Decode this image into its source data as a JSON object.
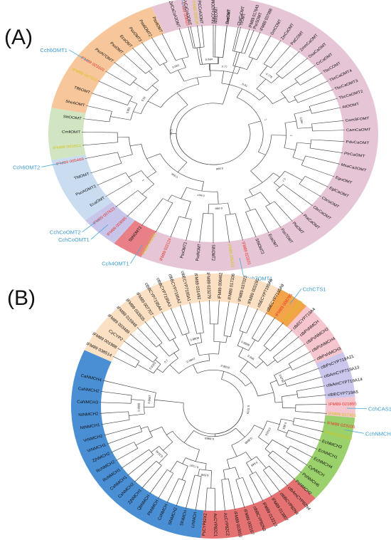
{
  "panels": [
    {
      "label": "(A)",
      "wedges": [
        {
          "color": "#b9b3ee",
          "a0": -110,
          "a1": -92
        },
        {
          "color": "#e6c6d6",
          "a0": -92,
          "a1": 116
        },
        {
          "color": "#e98087",
          "a0": 116,
          "a1": 127
        },
        {
          "color": "#c7c5ea",
          "a0": 127,
          "a1": 141
        },
        {
          "color": "#c9dcf0",
          "a0": 141,
          "a1": 169
        },
        {
          "color": "#d1e5c3",
          "a0": 169,
          "a1": 191
        },
        {
          "color": "#f7c79b",
          "a0": 191,
          "a1": 248
        },
        {
          "color": "#e6c6d6",
          "a0": 248,
          "a1": 270
        }
      ],
      "leaves": [
        {
          "a": -101,
          "t": "IFM89 008420",
          "c": "#e8312a"
        },
        {
          "a": -97,
          "t": "IFM89 009526",
          "c": "#d4c21a"
        },
        {
          "a": -89,
          "t": "MotEOMT",
          "c": "#111"
        },
        {
          "a": -84,
          "t": "GecOMT",
          "c": "#111"
        },
        {
          "a": -79,
          "t": "ChaCaOMT",
          "c": "#111"
        },
        {
          "a": -74,
          "t": "IFM89 017643",
          "c": "#111"
        },
        {
          "a": -69,
          "t": "IFM89 037098",
          "c": "#111"
        },
        {
          "a": -64,
          "t": "GmCOMT",
          "c": "#111"
        },
        {
          "a": -59,
          "t": "ZmCaOMT",
          "c": "#111"
        },
        {
          "a": -54,
          "t": "PstCOMT",
          "c": "#111"
        },
        {
          "a": -49,
          "t": "ZmmCaOMT",
          "c": "#111"
        },
        {
          "a": -44,
          "t": "OsaCaOMT",
          "c": "#111"
        },
        {
          "a": -39,
          "t": "CrCaOMT",
          "c": "#111"
        },
        {
          "a": -34,
          "t": "TbcCOMT",
          "c": "#111"
        },
        {
          "a": -29,
          "t": "TbcCaOMT4",
          "c": "#111"
        },
        {
          "a": -24,
          "t": "TbcCaOMT3",
          "c": "#111"
        },
        {
          "a": -19,
          "t": "TbcCaOMT2",
          "c": "#111"
        },
        {
          "a": -14,
          "t": "AtOOMT",
          "c": "#111"
        },
        {
          "a": -7,
          "t": "Cam3FOMT",
          "c": "#111"
        },
        {
          "a": -2,
          "t": "CamCaOMT",
          "c": "#111"
        },
        {
          "a": 4,
          "t": "PduCaOMT",
          "c": "#111"
        },
        {
          "a": 10,
          "t": "PtrCaOMT",
          "c": "#111"
        },
        {
          "a": 16,
          "t": "MsaCa3OMT",
          "c": "#111"
        },
        {
          "a": 23,
          "t": "EguOMT",
          "c": "#111"
        },
        {
          "a": 29,
          "t": "EglCaOMT",
          "c": "#111"
        },
        {
          "a": 35,
          "t": "CbrIsOMT",
          "c": "#111"
        },
        {
          "a": 41,
          "t": "CbrCaOMT",
          "c": "#111"
        },
        {
          "a": 47,
          "t": "PraCaOMT",
          "c": "#111"
        },
        {
          "a": 53,
          "t": "PtaOMT",
          "c": "#111"
        },
        {
          "a": 59,
          "t": "Pso7OMT",
          "c": "#111"
        },
        {
          "a": 65,
          "t": "EcaOMT",
          "c": "#111"
        },
        {
          "a": 71,
          "t": "SINOMT3",
          "c": "#111"
        },
        {
          "a": 77,
          "t": "IFM89 023101",
          "c": "#e8312a"
        },
        {
          "a": 83,
          "t": "IFM89 005453",
          "c": "#d4c21a"
        },
        {
          "a": 90,
          "t": "SINOMT2",
          "c": "#111"
        },
        {
          "a": 96,
          "t": "PsoNOMT",
          "c": "#111"
        },
        {
          "a": 102,
          "t": "PsoOMT2",
          "c": "#111"
        },
        {
          "a": 109,
          "t": "IFM89 022124",
          "c": "#e8312a"
        },
        {
          "a": 116,
          "t": "IFM89 001325",
          "c": "#d4c21a"
        },
        {
          "a": 123,
          "t": "SbNOMT2",
          "c": "#111"
        },
        {
          "a": 131,
          "t": "IFM89 003085",
          "c": "#e8312a"
        },
        {
          "a": 138,
          "t": "IFM89 007623",
          "c": "#e8312a"
        },
        {
          "a": 145,
          "t": "EcaOMT",
          "c": "#111"
        },
        {
          "a": 152,
          "t": "PsoAOMT2",
          "c": "#111"
        },
        {
          "a": 159,
          "t": "TfdOMT",
          "c": "#111"
        },
        {
          "a": 167,
          "t": "IFM89 005469",
          "c": "#e8312a"
        },
        {
          "a": 174,
          "t": "IFM89 003551",
          "c": "#d4c21a"
        },
        {
          "a": 181,
          "t": "CmllOMT",
          "c": "#111"
        },
        {
          "a": 188,
          "t": "SttOOMT",
          "c": "#111"
        },
        {
          "a": 195,
          "t": "She6OMT",
          "c": "#111"
        },
        {
          "a": 202,
          "t": "Tfl6OMT",
          "c": "#111"
        },
        {
          "a": 209,
          "t": "IFM89 007113",
          "c": "#d4c21a"
        },
        {
          "a": 215,
          "t": "IFM89 023101",
          "c": "#e8312a"
        },
        {
          "a": 221,
          "t": "PsoN7OMT",
          "c": "#111"
        },
        {
          "a": 227,
          "t": "PsoOMT",
          "c": "#111"
        },
        {
          "a": 232,
          "t": "EcaOMT",
          "c": "#111"
        },
        {
          "a": 237,
          "t": "PsoOMT3",
          "c": "#111"
        },
        {
          "a": 242,
          "t": "Pso6OMT2",
          "c": "#111"
        },
        {
          "a": 247,
          "t": "Pso6OMT",
          "c": "#111"
        },
        {
          "a": 255,
          "t": "ZelCaCoA3OMT",
          "c": "#111"
        },
        {
          "a": 260,
          "t": "VvCaCoA3OMT",
          "c": "#111"
        },
        {
          "a": 265,
          "t": "PtCCoA3OMT",
          "c": "#111"
        },
        {
          "a": 270,
          "t": "NtaCCoA3OMT5",
          "c": "#111"
        },
        {
          "a": 276,
          "t": "HvaOMT",
          "c": "#111"
        },
        {
          "a": 282,
          "t": "TfrOMT",
          "c": "#111"
        },
        {
          "a": 288,
          "t": "PsoSOMT",
          "c": "#111"
        }
      ],
      "callouts": [
        {
          "t": "Cch5OMT1",
          "a": -101
        },
        {
          "t": "Cch6OMT1",
          "a": 215
        },
        {
          "t": "Cch6OMT2",
          "a": 167
        },
        {
          "t": "CchCoOMT1",
          "a": 134
        },
        {
          "t": "CchCoOMT2",
          "a": 138
        },
        {
          "t": "Cch4OMT1",
          "a": 118
        },
        {
          "t": "Cch7OMT1",
          "a": 80
        }
      ],
      "bootstrap": [
        "0.984",
        "0.775",
        "0.994",
        "0.7",
        "0.998",
        "1",
        "0.951",
        "0.562",
        "0.77",
        "1",
        "0.607",
        "0.56",
        "0.81",
        "0.946",
        "1",
        "0.998",
        "0.575",
        "1",
        "0.904",
        "0.7",
        "0.727",
        "0.907",
        "0.991"
      ]
    },
    {
      "label": "(B)",
      "wedges": [
        {
          "color": "#fbe0c4",
          "a0": -155,
          "a1": -62
        },
        {
          "color": "#f3a34a",
          "a0": -62,
          "a1": -49
        },
        {
          "color": "#f6c6ce",
          "a0": -49,
          "a1": -24
        },
        {
          "color": "#cbc6ec",
          "a0": -24,
          "a1": -4
        },
        {
          "color": "#f6c6ce",
          "a0": -4,
          "a1": 5
        },
        {
          "color": "#9bd16c",
          "a0": 5,
          "a1": 44
        },
        {
          "color": "#e47272",
          "a0": 44,
          "a1": 95
        },
        {
          "color": "#4a8fd4",
          "a0": 95,
          "a1": 205
        }
      ],
      "leaves": [
        {
          "a": -152,
          "t": "IFM89 038514",
          "c": "#111"
        },
        {
          "a": -147,
          "t": "IFM89 001988",
          "c": "#111"
        },
        {
          "a": -142,
          "t": "CyCYP2",
          "c": "#111"
        },
        {
          "a": -137,
          "t": "IFM89 003489",
          "c": "#111"
        },
        {
          "a": -132,
          "t": "IFM89 015948",
          "c": "#111"
        },
        {
          "a": -127,
          "t": "IFM89 033835",
          "c": "#111"
        },
        {
          "a": -122,
          "t": "IFM89 007707",
          "c": "#111"
        },
        {
          "a": -117,
          "t": "ctbBCYP7195A4",
          "c": "#111"
        },
        {
          "a": -112,
          "t": "ctbBCYP7195A3",
          "c": "#111"
        },
        {
          "a": -107,
          "t": "ctbBCYP7195A2",
          "c": "#111"
        },
        {
          "a": -102,
          "t": "ctbECYP7195A1",
          "c": "#111"
        },
        {
          "a": -97,
          "t": "IFM89 031492",
          "c": "#111"
        },
        {
          "a": -92,
          "t": "IFM89 023279",
          "c": "#111"
        },
        {
          "a": -87,
          "t": "IFM89 008462",
          "c": "#111"
        },
        {
          "a": -82,
          "t": "IFM89 017336",
          "c": "#111"
        },
        {
          "a": -77,
          "t": "IFM89 037023",
          "c": "#111"
        },
        {
          "a": -72,
          "t": "IFM89 003190",
          "c": "#111"
        },
        {
          "a": -67,
          "t": "ctbECYP7195A8",
          "c": "#111"
        },
        {
          "a": -62,
          "t": "ctbECYP7195A9",
          "c": "#111"
        },
        {
          "a": -57,
          "t": "IFM89 008795",
          "c": "#e8312a"
        },
        {
          "a": -52,
          "t": "IFM89 034681",
          "c": "#d4c21a"
        },
        {
          "a": -46,
          "t": "ctbECYP719A4",
          "c": "#111"
        },
        {
          "a": -41,
          "t": "ctbPsNMCH",
          "c": "#111"
        },
        {
          "a": -36,
          "t": "ctbPsNMCH2",
          "c": "#111"
        },
        {
          "a": -31,
          "t": "ctbPsNMCH4",
          "c": "#111"
        },
        {
          "a": -26,
          "t": "ctbPsNMCH3",
          "c": "#111"
        },
        {
          "a": -21,
          "t": "ctbPsCYP719A21",
          "c": "#111"
        },
        {
          "a": -16,
          "t": "ctbAmCYP719A13",
          "c": "#111"
        },
        {
          "a": -11,
          "t": "ctbAmCYP719A14",
          "c": "#111"
        },
        {
          "a": -6,
          "t": "ctbECYP719A5",
          "c": "#111"
        },
        {
          "a": -1,
          "t": "IFM89 021855",
          "c": "#e8312a"
        },
        {
          "a": 4,
          "t": "IFM89 017451",
          "c": "#d4c21a"
        },
        {
          "a": 9,
          "t": "IFM89 023100",
          "c": "#e8312a"
        },
        {
          "a": 14,
          "t": "IFM89 001451",
          "c": "#d4c21a"
        },
        {
          "a": 19,
          "t": "EcNMCH3",
          "c": "#111"
        },
        {
          "a": 24,
          "t": "EcNMCH1",
          "c": "#111"
        },
        {
          "a": 29,
          "t": "EcNMCH4",
          "c": "#111"
        },
        {
          "a": 34,
          "t": "CyNMCH",
          "c": "#111"
        },
        {
          "a": 39,
          "t": "PsNMCH6",
          "c": "#111"
        },
        {
          "a": 44,
          "t": "PsNMCH2",
          "c": "#111"
        },
        {
          "a": 49,
          "t": "ctbAmCYP82N4",
          "c": "#111"
        },
        {
          "a": 54,
          "t": "ctbBCYP82N4",
          "c": "#111"
        },
        {
          "a": 59,
          "t": "IFM89 013807",
          "c": "#111"
        },
        {
          "a": 64,
          "t": "IFM89 013213",
          "c": "#111"
        },
        {
          "a": 69,
          "t": "ctbBCYP82N3",
          "c": "#111"
        },
        {
          "a": 74,
          "t": "IFM89 002167",
          "c": "#111"
        },
        {
          "a": 79,
          "t": "IFM89 003010",
          "c": "#111"
        },
        {
          "a": 84,
          "t": "AcCYP82C2",
          "c": "#111"
        },
        {
          "a": 89,
          "t": "AcCYP82C1",
          "c": "#111"
        },
        {
          "a": 94,
          "t": "PsCYP82X2",
          "c": "#111"
        },
        {
          "a": 99,
          "t": "LrNMCH",
          "c": "#111"
        },
        {
          "a": 104,
          "t": "SlNMCH",
          "c": "#111"
        },
        {
          "a": 109,
          "t": "SlNMCH2",
          "c": "#111"
        },
        {
          "a": 114,
          "t": "CsNMCH",
          "c": "#111"
        },
        {
          "a": 119,
          "t": "PbNMCH",
          "c": "#111"
        },
        {
          "a": 124,
          "t": "QbNMCH",
          "c": "#111"
        },
        {
          "a": 129,
          "t": "ZjNMCH1",
          "c": "#111"
        },
        {
          "a": 134,
          "t": "CsNMCH2",
          "c": "#111"
        },
        {
          "a": 139,
          "t": "CsNMCH1",
          "c": "#111"
        },
        {
          "a": 144,
          "t": "RcNMCH1",
          "c": "#111"
        },
        {
          "a": 149,
          "t": "RcNMCH2",
          "c": "#111"
        },
        {
          "a": 154,
          "t": "ZjNMCH2",
          "c": "#111"
        },
        {
          "a": 159,
          "t": "VrNMCH1",
          "c": "#111"
        },
        {
          "a": 164,
          "t": "VrNMCH2",
          "c": "#111"
        },
        {
          "a": 170,
          "t": "NtNMCH1",
          "c": "#111"
        },
        {
          "a": 176,
          "t": "NtNMCH2",
          "c": "#111"
        },
        {
          "a": 182,
          "t": "CaNMCH3",
          "c": "#111"
        },
        {
          "a": 188,
          "t": "CaNMCH2",
          "c": "#111"
        },
        {
          "a": 194,
          "t": "CaNMCH4",
          "c": "#111"
        }
      ],
      "callouts": [
        {
          "t": "CchCTS1",
          "a": -55
        },
        {
          "t": "CchCAS1",
          "a": 1
        },
        {
          "t": "CchNMCH1",
          "a": 11
        }
      ],
      "bootstrap": [
        "0.9359",
        "0.8809",
        "0.9949",
        "0.6796",
        "0.983",
        "0.648",
        "0.596",
        "0.5146",
        "0.9908",
        "0.7",
        "0.945",
        "0.5919",
        "0.7197",
        "0.9667",
        "0.9947",
        "0.9999",
        "0.9816",
        "0.7079",
        "0.8969",
        "0.999",
        "0.983"
      ]
    }
  ]
}
